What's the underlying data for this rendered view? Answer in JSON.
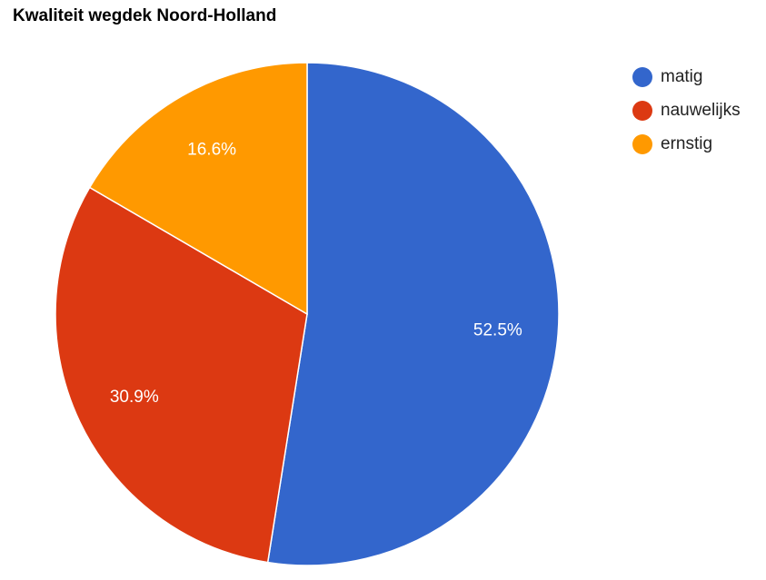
{
  "chart_data": {
    "type": "pie",
    "title": "Kwaliteit wegdek Noord-Holland",
    "categories": [
      "matig",
      "nauwelijks",
      "ernstig"
    ],
    "values": [
      52.5,
      30.9,
      16.6
    ],
    "labels": [
      "52.5%",
      "30.9%",
      "16.6%"
    ],
    "colors": [
      "#3366cc",
      "#dc3912",
      "#ff9900"
    ],
    "legend_position": "right"
  }
}
